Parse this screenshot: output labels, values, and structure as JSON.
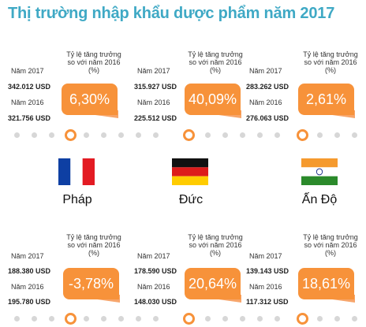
{
  "title": "Thị trường nhập khẩu dược phẩm năm 2017",
  "labels": {
    "year_2017": "Năm 2017",
    "year_2016": "Năm 2016",
    "rate_caption": "Tỷ lệ tăng trưởng so với năm 2016 (%)"
  },
  "exporters": [
    {
      "value_2017": "342.012 USD",
      "value_2016": "321.756 USD",
      "growth": "6,30%"
    },
    {
      "value_2017": "315.927 USD",
      "value_2016": "225.512 USD",
      "growth": "40,09%"
    },
    {
      "value_2017": "283.262 USD",
      "value_2016": "276.063 USD",
      "growth": "2,61%"
    }
  ],
  "countries": [
    {
      "name": "Pháp",
      "flag": "france-flag-icon",
      "colors": [
        "#0e3fa3",
        "#ffffff",
        "#e31b23"
      ]
    },
    {
      "name": "Đức",
      "flag": "germany-flag-icon",
      "colors": [
        "#111111",
        "#dd1b1b",
        "#ffcc00"
      ]
    },
    {
      "name": "Ấn Độ",
      "flag": "india-flag-icon",
      "colors": [
        "#f59a2e",
        "#ffffff",
        "#2b8a2b"
      ]
    }
  ],
  "importers": [
    {
      "value_2017": "188.380 USD",
      "value_2016": "195.780 USD",
      "growth": "-3,78%"
    },
    {
      "value_2017": "178.590 USD",
      "value_2016": "148.030 USD",
      "growth": "20,64%"
    },
    {
      "value_2017": "139.143 USD",
      "value_2016": "117.312 USD",
      "growth": "18,61%"
    }
  ],
  "accent_color": "#f7923a",
  "title_color": "#3fa9c5"
}
